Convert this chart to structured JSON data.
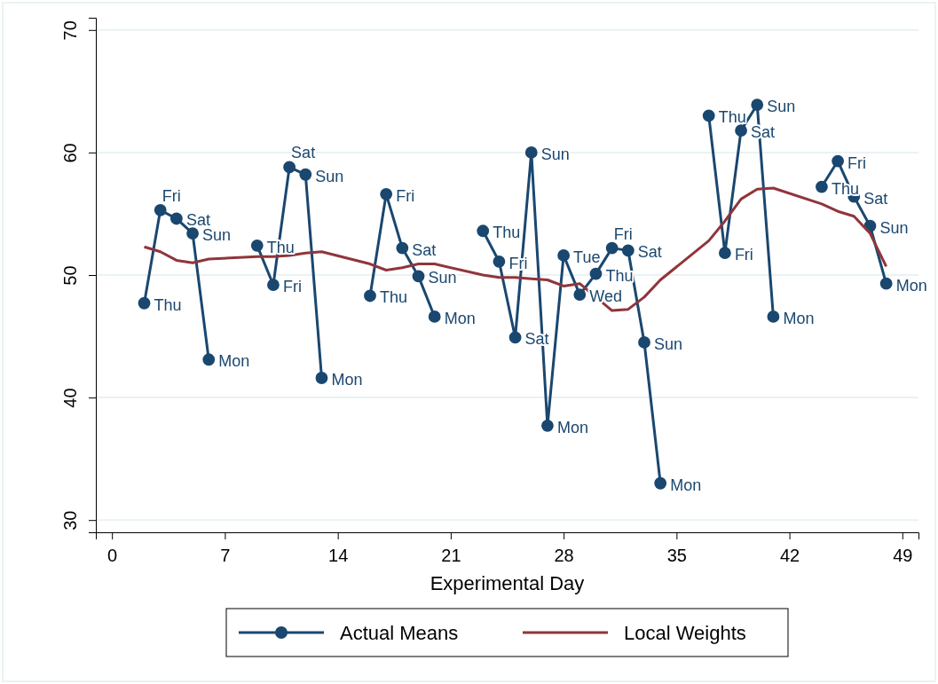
{
  "chart_data": {
    "type": "line",
    "xlabel": "Experimental Day",
    "xlim": [
      -1,
      50
    ],
    "xticks": [
      0,
      7,
      14,
      21,
      28,
      35,
      42,
      49
    ],
    "ylim": [
      29,
      71
    ],
    "yticks": [
      30,
      40,
      50,
      60,
      70
    ],
    "grid": "y",
    "legend": "bottom",
    "line_style": "solid",
    "series": [
      {
        "name": "Actual Means",
        "color": "#1a476f",
        "marker": "circle",
        "x": [
          2,
          3,
          4,
          5,
          6,
          7.5,
          9,
          10,
          11,
          12,
          13,
          14.5,
          16,
          17,
          18,
          19,
          20,
          21.5,
          23,
          24,
          25,
          26,
          27,
          28,
          29,
          30,
          31,
          32,
          33,
          34,
          35.5,
          37,
          38,
          39,
          40,
          41,
          42.5,
          44,
          45,
          46,
          47,
          48
        ],
        "values": [
          47.7,
          55.3,
          54.6,
          53.4,
          43.1,
          null,
          52.4,
          49.2,
          58.8,
          58.2,
          41.6,
          null,
          48.3,
          56.6,
          52.2,
          49.9,
          46.6,
          null,
          53.6,
          51.1,
          44.9,
          60.0,
          37.7,
          51.6,
          48.4,
          50.1,
          52.2,
          52.0,
          44.5,
          33.0,
          null,
          63.0,
          51.8,
          61.8,
          63.9,
          46.6,
          null,
          57.2,
          59.3,
          56.4,
          54.0,
          49.3
        ],
        "value_labels": [
          "Thu",
          "Fri",
          "Sat",
          "Sun",
          "Mon",
          null,
          "Thu",
          "Fri",
          "Sat",
          "Sun",
          "Mon",
          null,
          "Thu",
          "Fri",
          "Sat",
          "Sun",
          "Mon",
          null,
          "Thu",
          "Fri",
          "Sat",
          "Sun",
          "Mon",
          "Tue",
          "Wed",
          "Thu",
          "Fri",
          "Sat",
          "Sun",
          "Mon",
          null,
          "Thu",
          "Fri",
          "Sat",
          "Sun",
          "Mon",
          null,
          "Thu",
          "Fri",
          "Sat",
          "Sun",
          "Mon"
        ]
      },
      {
        "name": "Local Weights",
        "color": "#90353b",
        "marker": "none",
        "x": [
          2,
          3,
          4,
          5,
          6,
          9,
          10,
          11,
          12,
          13,
          16,
          17,
          18,
          19,
          20,
          23,
          24,
          25,
          26,
          27,
          28,
          29,
          30,
          31,
          32,
          33,
          34,
          37,
          38,
          39,
          40,
          41,
          44,
          45,
          46,
          47,
          48
        ],
        "values": [
          52.3,
          51.9,
          51.2,
          51.0,
          51.3,
          51.5,
          51.5,
          51.6,
          51.8,
          51.9,
          50.9,
          50.4,
          50.6,
          50.9,
          50.9,
          50.0,
          49.8,
          49.8,
          49.7,
          49.6,
          49.1,
          49.3,
          48.2,
          47.1,
          47.2,
          48.2,
          49.6,
          52.8,
          54.4,
          56.2,
          57.0,
          57.1,
          55.8,
          55.2,
          54.8,
          53.4,
          50.7
        ]
      }
    ]
  }
}
